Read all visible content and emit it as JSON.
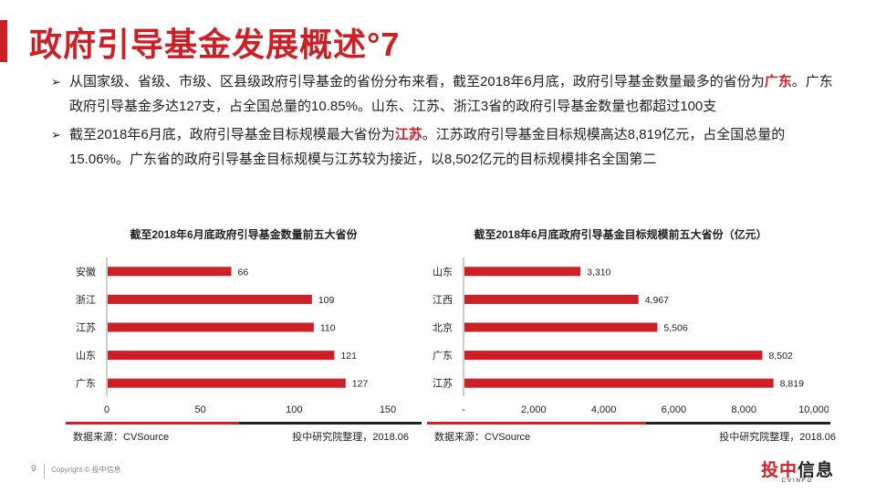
{
  "title": "政府引导基金发展概述°7",
  "bullets": [
    {
      "mark": "➢",
      "pre": "从国家级、省级、市级、区县级政府引导基金的省份分布来看，截至2018年6月底，政府引导基金数量最多的省份为",
      "highlight": "广东",
      "post": "。广东政府引导基金多达127支，占全国总量的10.85%。山东、江苏、浙江3省的政府引导基金数量也都超过100支"
    },
    {
      "mark": "➢",
      "pre": "截至2018年6月底，政府引导基金目标规模最大省份为",
      "highlight": "江苏",
      "post": "。江苏政府引导基金目标规模高达8,819亿元，占全国总量的15.06%。广东省的政府引导基金目标规模与江苏较为接近，以8,502亿元的目标规模排名全国第二"
    }
  ],
  "chart_data": [
    {
      "type": "bar",
      "orientation": "horizontal",
      "title": "截至2018年6月底政府引导基金数量前五大省份",
      "categories": [
        "安徽",
        "浙江",
        "江苏",
        "山东",
        "广东"
      ],
      "values": [
        66,
        109,
        110,
        121,
        127
      ],
      "value_labels": [
        "66",
        "109",
        "110",
        "121",
        "127"
      ],
      "xlim": [
        0,
        150
      ],
      "xticks": [
        0,
        50,
        100,
        150
      ],
      "xtick_labels": [
        "0",
        "50",
        "100",
        "150"
      ],
      "bar_color": "#cc1f26",
      "grid": false,
      "source": "数据来源：CVSource",
      "compiled_by": "投中研究院整理，2018.06"
    },
    {
      "type": "bar",
      "orientation": "horizontal",
      "title": "截至2018年6月底政府引导基金目标规模前五大省份（亿元）",
      "categories": [
        "山东",
        "江西",
        "北京",
        "广东",
        "江苏"
      ],
      "values": [
        3310,
        4967,
        5506,
        8502,
        8819
      ],
      "value_labels": [
        "3,310",
        "4,967",
        "5,506",
        "8,502",
        "8,819"
      ],
      "xlim": [
        0,
        10000
      ],
      "xticks": [
        0,
        2000,
        4000,
        6000,
        8000,
        10000
      ],
      "xtick_labels": [
        "-",
        "2,000",
        "4,000",
        "6,000",
        "8,000",
        "10,000"
      ],
      "bar_color": "#cc1f26",
      "grid": false,
      "source": "数据来源：CVSource",
      "compiled_by": "投中研究院整理，2018.06"
    }
  ],
  "footer": {
    "page_number": "9",
    "copyright": "Copyright © 投中信息",
    "logo_text_red": "投中",
    "logo_text_dark": "信息",
    "logo_en": "CVINFO"
  },
  "colors": {
    "accent": "#cc1f26",
    "dark": "#222222"
  }
}
